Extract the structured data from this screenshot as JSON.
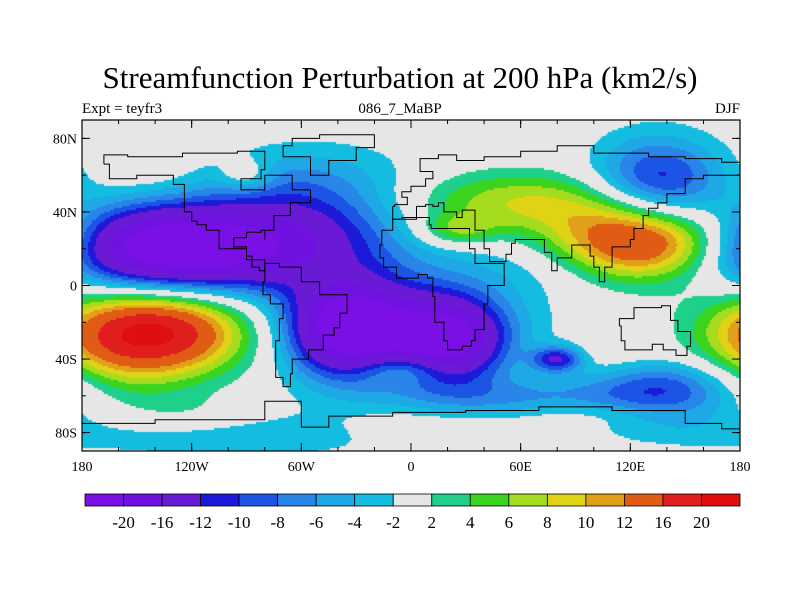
{
  "chart_data": {
    "type": "heatmap",
    "title": "Streamfunction Perturbation at 200 hPa (km2/s)",
    "subtitle_left": "Expt = teyfr3",
    "subtitle_center": "086_7_MaBP",
    "subtitle_right": "DJF",
    "x_ticks": [
      {
        "value": -180,
        "label": "180"
      },
      {
        "value": -120,
        "label": "120W"
      },
      {
        "value": -60,
        "label": "60W"
      },
      {
        "value": 0,
        "label": "0"
      },
      {
        "value": 60,
        "label": "60E"
      },
      {
        "value": 120,
        "label": "120E"
      },
      {
        "value": 180,
        "label": "180"
      }
    ],
    "y_ticks": [
      {
        "value": 80,
        "label": "80N"
      },
      {
        "value": 40,
        "label": "40N"
      },
      {
        "value": 0,
        "label": "0"
      },
      {
        "value": -40,
        "label": "40S"
      },
      {
        "value": -80,
        "label": "80S"
      }
    ],
    "xlim": [
      -180,
      180
    ],
    "ylim": [
      -90,
      90
    ],
    "colorbar": {
      "levels": [
        "-20",
        "-16",
        "-12",
        "-10",
        "-8",
        "-6",
        "-4",
        "-2",
        "2",
        "4",
        "6",
        "8",
        "10",
        "12",
        "16",
        "20"
      ],
      "colors": [
        "#7a10e6",
        "#7012df",
        "#6a1ad4",
        "#1c1ad8",
        "#1c55e6",
        "#2a85e8",
        "#1ea8e6",
        "#14bde0",
        "#e6e6e6",
        "#1ed08a",
        "#3ad41e",
        "#a6dc1e",
        "#e0d214",
        "#e0a01a",
        "#e05c14",
        "#e01e1e",
        "#e00e0e"
      ]
    },
    "features": [
      {
        "lon": -112,
        "lat": 20,
        "value": -20,
        "spread_lon": 48,
        "spread_lat": 17
      },
      {
        "lon": -145,
        "lat": 22,
        "value": -8,
        "spread_lon": 30,
        "spread_lat": 16
      },
      {
        "lon": -35,
        "lat": -24,
        "value": -20,
        "spread_lon": 22,
        "spread_lat": 18
      },
      {
        "lon": 20,
        "lat": -30,
        "value": -18,
        "spread_lon": 22,
        "spread_lat": 16
      },
      {
        "lon": -5,
        "lat": -20,
        "value": -8,
        "spread_lon": 45,
        "spread_lat": 22
      },
      {
        "lon": -50,
        "lat": 40,
        "value": -8,
        "spread_lon": 40,
        "spread_lat": 22
      },
      {
        "lon": 80,
        "lat": -40,
        "value": -12,
        "spread_lon": 10,
        "spread_lat": 5
      },
      {
        "lon": 135,
        "lat": 55,
        "value": -12,
        "spread_lon": 25,
        "spread_lat": 18
      },
      {
        "lon": 140,
        "lat": -55,
        "value": -10,
        "spread_lon": 30,
        "spread_lat": 14
      },
      {
        "lon": 110,
        "lat": 10,
        "value": -4,
        "spread_lon": 55,
        "spread_lat": 12
      },
      {
        "lon": -100,
        "lat": -78,
        "value": -6,
        "spread_lon": 75,
        "spread_lat": 10
      },
      {
        "lon": 60,
        "lat": -65,
        "value": -7,
        "spread_lon": 45,
        "spread_lat": 10
      },
      {
        "lon": -120,
        "lat": 60,
        "value": -3,
        "spread_lon": 50,
        "spread_lat": 10
      },
      {
        "lon": -140,
        "lat": -25,
        "value": 20,
        "spread_lon": 35,
        "spread_lat": 16
      },
      {
        "lon": -165,
        "lat": -40,
        "value": 4,
        "spread_lon": 30,
        "spread_lat": 20
      },
      {
        "lon": 125,
        "lat": 22,
        "value": 20,
        "spread_lon": 32,
        "spread_lat": 15
      },
      {
        "lon": 60,
        "lat": 45,
        "value": 8,
        "spread_lon": 50,
        "spread_lat": 12
      },
      {
        "lon": -140,
        "lat": 60,
        "value": 4,
        "spread_lon": 30,
        "spread_lat": 10
      },
      {
        "lon": -90,
        "lat": 60,
        "value": 5,
        "spread_lon": 10,
        "spread_lat": 6
      },
      {
        "lon": -120,
        "lat": -72,
        "value": 5,
        "spread_lon": 35,
        "spread_lat": 8
      },
      {
        "lon": 120,
        "lat": -40,
        "value": 3,
        "spread_lon": 35,
        "spread_lat": 8
      },
      {
        "lon": 5,
        "lat": -75,
        "value": 4,
        "spread_lon": 50,
        "spread_lat": 8
      },
      {
        "lon": 95,
        "lat": -70,
        "value": 4,
        "spread_lon": 40,
        "spread_lat": 6
      },
      {
        "lon": -5,
        "lat": -45,
        "value": 6,
        "spread_lon": 18,
        "spread_lat": 6
      },
      {
        "lon": 25,
        "lat": 30,
        "value": 6,
        "spread_lon": 15,
        "spread_lat": 6
      }
    ],
    "outlines": [
      [
        [
          -168,
          66
        ],
        [
          -155,
          71
        ],
        [
          -140,
          70
        ],
        [
          -125,
          70
        ],
        [
          -95,
          72
        ],
        [
          -80,
          73
        ],
        [
          -82,
          63
        ],
        [
          -93,
          58
        ],
        [
          -80,
          52
        ],
        [
          -65,
          60
        ],
        [
          -55,
          52
        ],
        [
          -66,
          45
        ],
        [
          -75,
          38
        ],
        [
          -80,
          30
        ],
        [
          -80,
          25
        ],
        [
          -82,
          30
        ],
        [
          -90,
          29
        ],
        [
          -97,
          26
        ],
        [
          -97,
          20
        ],
        [
          -90,
          21
        ],
        [
          -87,
          16
        ],
        [
          -83,
          10
        ],
        [
          -80,
          8
        ],
        [
          -90,
          14
        ],
        [
          -105,
          20
        ],
        [
          -112,
          30
        ],
        [
          -117,
          33
        ],
        [
          -120,
          35
        ],
        [
          -124,
          40
        ],
        [
          -124,
          48
        ],
        [
          -130,
          55
        ],
        [
          -140,
          60
        ],
        [
          -150,
          60
        ],
        [
          -165,
          58
        ],
        [
          -168,
          66
        ]
      ],
      [
        [
          -80,
          10
        ],
        [
          -72,
          12
        ],
        [
          -60,
          10
        ],
        [
          -50,
          2
        ],
        [
          -35,
          -5
        ],
        [
          -39,
          -15
        ],
        [
          -42,
          -23
        ],
        [
          -48,
          -27
        ],
        [
          -56,
          -35
        ],
        [
          -65,
          -40
        ],
        [
          -66,
          -48
        ],
        [
          -70,
          -55
        ],
        [
          -74,
          -50
        ],
        [
          -74,
          -40
        ],
        [
          -72,
          -30
        ],
        [
          -70,
          -18
        ],
        [
          -77,
          -10
        ],
        [
          -81,
          -5
        ],
        [
          -80,
          2
        ],
        [
          -80,
          10
        ]
      ],
      [
        [
          -5,
          36
        ],
        [
          10,
          37
        ],
        [
          11,
          33
        ],
        [
          20,
          31
        ],
        [
          32,
          31
        ],
        [
          35,
          20
        ],
        [
          43,
          12
        ],
        [
          51,
          12
        ],
        [
          42,
          0
        ],
        [
          40,
          -10
        ],
        [
          40,
          -16
        ],
        [
          35,
          -24
        ],
        [
          33,
          -30
        ],
        [
          28,
          -33
        ],
        [
          20,
          -35
        ],
        [
          18,
          -30
        ],
        [
          13,
          -20
        ],
        [
          12,
          -6
        ],
        [
          9,
          4
        ],
        [
          4,
          6
        ],
        [
          -8,
          4
        ],
        [
          -15,
          10
        ],
        [
          -17,
          15
        ],
        [
          -16,
          22
        ],
        [
          -10,
          30
        ],
        [
          -5,
          36
        ]
      ],
      [
        [
          -10,
          36
        ],
        [
          -9,
          43
        ],
        [
          -2,
          44
        ],
        [
          -2,
          48
        ],
        [
          -5,
          48
        ],
        [
          0,
          51
        ],
        [
          8,
          54
        ],
        [
          12,
          58
        ],
        [
          5,
          62
        ],
        [
          15,
          69
        ],
        [
          25,
          71
        ],
        [
          40,
          68
        ],
        [
          60,
          70
        ],
        [
          80,
          73
        ],
        [
          100,
          76
        ],
        [
          130,
          72
        ],
        [
          150,
          70
        ],
        [
          170,
          69
        ],
        [
          180,
          67
        ],
        [
          180,
          62
        ],
        [
          160,
          60
        ],
        [
          150,
          58
        ],
        [
          140,
          50
        ],
        [
          135,
          45
        ],
        [
          130,
          42
        ],
        [
          127,
          38
        ],
        [
          122,
          31
        ],
        [
          120,
          25
        ],
        [
          110,
          21
        ],
        [
          106,
          10
        ],
        [
          103,
          2
        ],
        [
          100,
          10
        ],
        [
          98,
          16
        ],
        [
          92,
          22
        ],
        [
          88,
          22
        ],
        [
          80,
          15
        ],
        [
          77,
          8
        ],
        [
          73,
          18
        ],
        [
          67,
          25
        ],
        [
          57,
          25
        ],
        [
          55,
          23
        ],
        [
          52,
          17
        ],
        [
          43,
          13
        ],
        [
          40,
          20
        ],
        [
          35,
          30
        ],
        [
          35,
          36
        ],
        [
          28,
          41
        ],
        [
          25,
          37
        ],
        [
          22,
          40
        ],
        [
          18,
          40
        ],
        [
          15,
          45
        ],
        [
          12,
          43
        ],
        [
          8,
          44
        ],
        [
          3,
          43
        ],
        [
          -10,
          36
        ]
      ],
      [
        [
          -50,
          60
        ],
        [
          -45,
          60
        ],
        [
          -30,
          68
        ],
        [
          -20,
          75
        ],
        [
          -25,
          82
        ],
        [
          -50,
          82
        ],
        [
          -65,
          80
        ],
        [
          -70,
          76
        ],
        [
          -55,
          70
        ],
        [
          -50,
          60
        ]
      ],
      [
        [
          114,
          -22
        ],
        [
          122,
          -18
        ],
        [
          131,
          -12
        ],
        [
          137,
          -12
        ],
        [
          142,
          -11
        ],
        [
          146,
          -19
        ],
        [
          153,
          -25
        ],
        [
          151,
          -33
        ],
        [
          145,
          -38
        ],
        [
          138,
          -35
        ],
        [
          132,
          -32
        ],
        [
          117,
          -35
        ],
        [
          115,
          -30
        ],
        [
          114,
          -22
        ]
      ],
      [
        [
          -180,
          -78
        ],
        [
          -140,
          -75
        ],
        [
          -80,
          -73
        ],
        [
          -60,
          -63
        ],
        [
          -45,
          -77
        ],
        [
          -10,
          -71
        ],
        [
          30,
          -69
        ],
        [
          70,
          -68
        ],
        [
          110,
          -66
        ],
        [
          150,
          -68
        ],
        [
          170,
          -75
        ],
        [
          180,
          -78
        ]
      ]
    ]
  }
}
